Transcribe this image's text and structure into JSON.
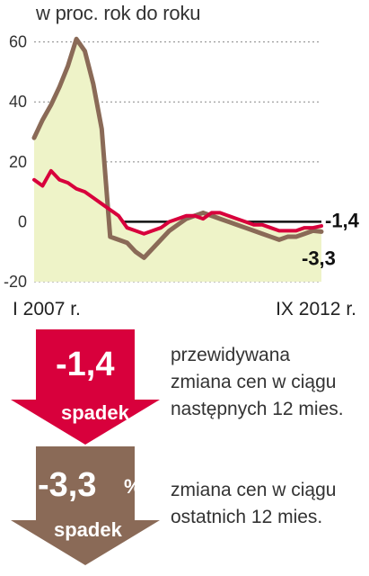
{
  "chart_data": {
    "type": "line",
    "subtitle": "w proc. rok do roku",
    "x_start_label": "I 2007 r.",
    "x_end_label": "IX 2012 r.",
    "ylim": [
      -20,
      65
    ],
    "y_ticks": [
      60,
      40,
      20,
      0,
      -20
    ],
    "zero_line": true,
    "colors": {
      "forecast": "#d8003c",
      "actual": "#8a6a57",
      "area": "#eef3c8"
    },
    "x": [
      "2007-01",
      "2007-03",
      "2007-05",
      "2007-07",
      "2007-09",
      "2007-11",
      "2008-01",
      "2008-03",
      "2008-05",
      "2008-07",
      "2008-09",
      "2008-11",
      "2009-01",
      "2009-03",
      "2009-05",
      "2009-07",
      "2009-09",
      "2009-11",
      "2010-01",
      "2010-03",
      "2010-05",
      "2010-07",
      "2010-09",
      "2010-11",
      "2011-01",
      "2011-03",
      "2011-05",
      "2011-07",
      "2011-09",
      "2011-11",
      "2012-01",
      "2012-03",
      "2012-05",
      "2012-07",
      "2012-09"
    ],
    "series": [
      {
        "values": [
          14,
          12,
          17,
          14,
          13,
          11,
          10,
          8,
          6,
          4,
          2,
          -2,
          -3,
          -4,
          -3,
          -2,
          0,
          1,
          2,
          2,
          1,
          3,
          3,
          2,
          1,
          0,
          -1,
          -1,
          -2,
          -3,
          -3,
          -3,
          -2,
          -2,
          -1.4
        ]
      },
      {
        "values": [
          28,
          34,
          39,
          45,
          52,
          61,
          57,
          46,
          31,
          -5,
          -6,
          -7,
          -10,
          -12,
          -9,
          -6,
          -3,
          -1,
          1,
          2,
          3,
          2,
          1,
          0,
          -1,
          -2,
          -3,
          -4,
          -5,
          -6,
          -5,
          -5,
          -4,
          -3,
          -3.3
        ]
      }
    ],
    "end_labels": [
      "-1,4",
      "-3,3"
    ]
  },
  "forecast_box": {
    "value": "-1,4",
    "tag": "spadek",
    "lines": [
      "przewidywana",
      "zmiana cen w ciągu",
      "następnych 12 mies."
    ]
  },
  "actual_box": {
    "value": "-3,3",
    "percent": "%",
    "tag": "spadek",
    "lines": [
      "zmiana cen w ciągu",
      "ostatnich 12 mies."
    ]
  }
}
